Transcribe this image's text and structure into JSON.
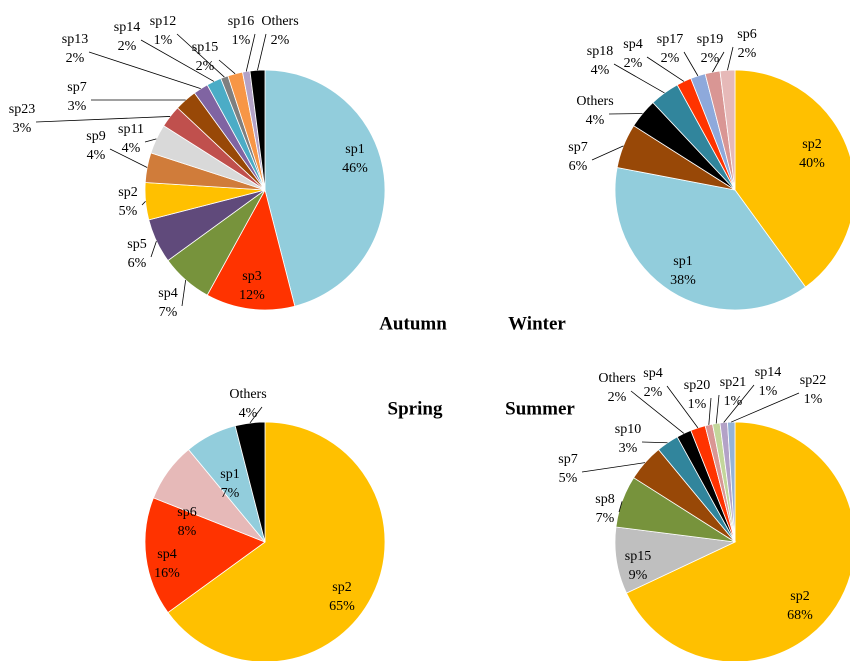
{
  "chart_data": [
    {
      "type": "pie",
      "title": "Autumn",
      "categories": [
        "sp1",
        "sp3",
        "sp4",
        "sp5",
        "sp2",
        "sp9",
        "sp11",
        "sp23",
        "sp7",
        "sp13",
        "sp14",
        "sp12",
        "sp15",
        "sp16",
        "Others"
      ],
      "values": [
        46,
        12,
        7,
        6,
        5,
        4,
        4,
        3,
        3,
        2,
        2,
        1,
        2,
        1,
        2
      ],
      "value_labels": [
        "46%",
        "12%",
        "7%",
        "6%",
        "5%",
        "4%",
        "4%",
        "3%",
        "3%",
        "2%",
        "2%",
        "1%",
        "2%",
        "1%",
        "2%"
      ],
      "colors": [
        "#92CDDC",
        "#FF3300",
        "#77933C",
        "#604A7B",
        "#FFC000",
        "#D07C3A",
        "#D9D9D9",
        "#C0504D",
        "#984807",
        "#8064A2",
        "#4BACC6",
        "#7F7F7F",
        "#F79646",
        "#B3A2C7",
        "#000000"
      ]
    },
    {
      "type": "pie",
      "title": "Winter",
      "categories": [
        "sp2",
        "sp1",
        "sp7",
        "Others",
        "sp18",
        "sp4",
        "sp17",
        "sp19",
        "sp6"
      ],
      "values": [
        40,
        38,
        6,
        4,
        4,
        2,
        2,
        2,
        2
      ],
      "value_labels": [
        "40%",
        "38%",
        "6%",
        "4%",
        "4%",
        "2%",
        "2%",
        "2%",
        "2%"
      ],
      "colors": [
        "#FFC000",
        "#92CDDC",
        "#984807",
        "#000000",
        "#31859C",
        "#FF3300",
        "#8EA9DB",
        "#D99694",
        "#E6B9B8"
      ]
    },
    {
      "type": "pie",
      "title": "Spring",
      "categories": [
        "sp2",
        "sp4",
        "sp6",
        "sp1",
        "Others"
      ],
      "values": [
        65,
        16,
        8,
        7,
        4
      ],
      "value_labels": [
        "65%",
        "16%",
        "8%",
        "7%",
        "4%"
      ],
      "colors": [
        "#FFC000",
        "#FF3300",
        "#E6B9B8",
        "#92CDDC",
        "#000000"
      ]
    },
    {
      "type": "pie",
      "title": "Summer",
      "categories": [
        "sp2",
        "sp15",
        "sp8",
        "sp7",
        "sp10",
        "Others",
        "sp4",
        "sp20",
        "sp21",
        "sp14",
        "sp22"
      ],
      "values": [
        68,
        9,
        7,
        5,
        3,
        2,
        2,
        1,
        1,
        1,
        1
      ],
      "value_labels": [
        "68%",
        "9%",
        "7%",
        "5%",
        "3%",
        "2%",
        "2%",
        "1%",
        "1%",
        "1%",
        "1%"
      ],
      "colors": [
        "#FFC000",
        "#BFBFBF",
        "#77933C",
        "#984807",
        "#31859C",
        "#000000",
        "#FF3300",
        "#D99694",
        "#C3D69B",
        "#B3A2C7",
        "#95B3D7"
      ]
    }
  ]
}
